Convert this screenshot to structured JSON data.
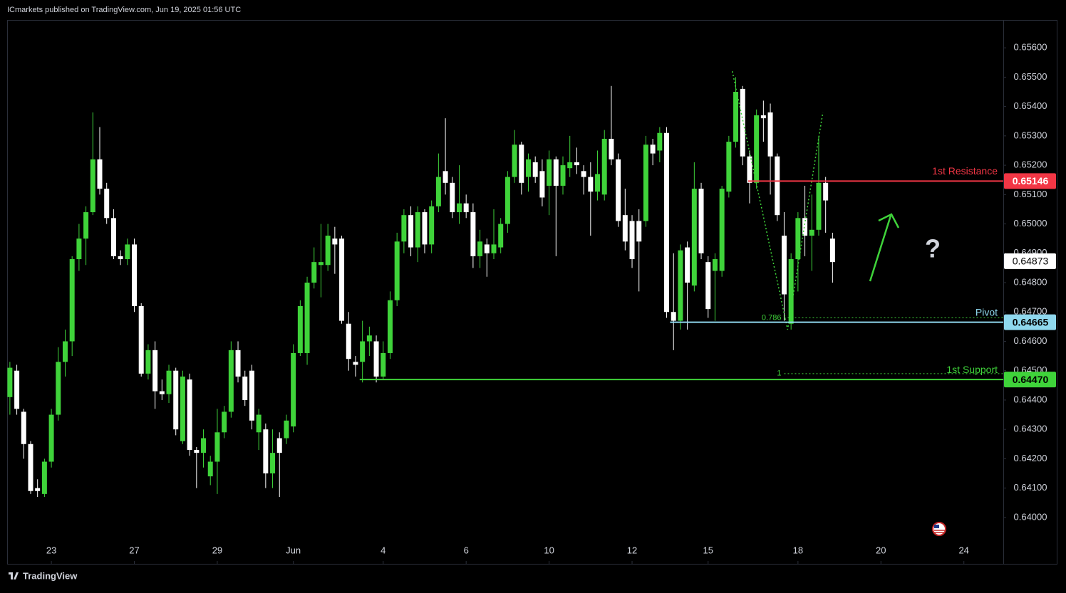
{
  "header": {
    "text": "ICmarkets published on TradingView.com, Jun 19, 2025 01:56 UTC"
  },
  "footer": {
    "brand": "TradingView"
  },
  "chart_data": {
    "type": "candlestick",
    "colors": {
      "up": "#3fd33a",
      "down": "#ffffff"
    },
    "xlim": [
      -0.4,
      143.7
    ],
    "xticks": [
      {
        "value": 6,
        "label": "23"
      },
      {
        "value": 18,
        "label": "27"
      },
      {
        "value": 30,
        "label": "29"
      },
      {
        "value": 41,
        "label": "Jun"
      },
      {
        "value": 54,
        "label": "4"
      },
      {
        "value": 66,
        "label": "6"
      },
      {
        "value": 78,
        "label": "10"
      },
      {
        "value": 90,
        "label": "12"
      },
      {
        "value": 101,
        "label": "15"
      },
      {
        "value": 114,
        "label": "18"
      },
      {
        "value": 126,
        "label": "20"
      },
      {
        "value": 138,
        "label": "24"
      }
    ],
    "ylim": [
      0.63842,
      0.65695
    ],
    "yticks": [
      {
        "value": 0.656,
        "label": "0.65600"
      },
      {
        "value": 0.655,
        "label": "0.65500"
      },
      {
        "value": 0.654,
        "label": "0.65400"
      },
      {
        "value": 0.653,
        "label": "0.65300"
      },
      {
        "value": 0.652,
        "label": "0.65200"
      },
      {
        "value": 0.651,
        "label": "0.65100"
      },
      {
        "value": 0.65,
        "label": "0.65000"
      },
      {
        "value": 0.649,
        "label": "0.64900"
      },
      {
        "value": 0.648,
        "label": "0.64800"
      },
      {
        "value": 0.647,
        "label": "0.64700"
      },
      {
        "value": 0.646,
        "label": "0.64600"
      },
      {
        "value": 0.645,
        "label": "0.64500"
      },
      {
        "value": 0.644,
        "label": "0.64400"
      },
      {
        "value": 0.643,
        "label": "0.64300"
      },
      {
        "value": 0.642,
        "label": "0.64200"
      },
      {
        "value": 0.641,
        "label": "0.64100"
      },
      {
        "value": 0.64,
        "label": "0.64000"
      }
    ],
    "candles": {
      "open": [
        0.6441,
        0.645,
        0.6436,
        0.6425,
        0.641,
        0.6408,
        0.6419,
        0.6435,
        0.6453,
        0.646,
        0.6488,
        0.6495,
        0.6504,
        0.6522,
        0.6512,
        0.6502,
        0.6489,
        0.6488,
        0.6493,
        0.6472,
        0.6449,
        0.6457,
        0.6443,
        0.6442,
        0.645,
        0.6426,
        0.6447,
        0.6423,
        0.6422,
        0.6414,
        0.6419,
        0.6429,
        0.6436,
        0.6457,
        0.6448,
        0.645,
        0.6429,
        0.643,
        0.6415,
        0.6427,
        0.6427,
        0.6431,
        0.6456,
        0.6456,
        0.648,
        0.6486,
        0.6486,
        0.6495,
        0.6495,
        0.6466,
        0.6453,
        0.6453,
        0.646,
        0.646,
        0.6448,
        0.6456,
        0.6474,
        0.6494,
        0.6503,
        0.6492,
        0.6504,
        0.6493,
        0.6506,
        0.6518,
        0.6514,
        0.6504,
        0.6507,
        0.6504,
        0.6489,
        0.6493,
        0.649,
        0.6492,
        0.65,
        0.6516,
        0.6527,
        0.6516,
        0.6521,
        0.6518,
        0.6513,
        0.6522,
        0.6513,
        0.6519,
        0.6521,
        0.6518,
        0.6516,
        0.6511,
        0.651,
        0.6529,
        0.6522,
        0.6503,
        0.6501,
        0.6501,
        0.6501,
        0.6527,
        0.6525,
        0.6531,
        0.647,
        0.6467,
        0.6492,
        0.6479,
        0.6512,
        0.6487,
        0.6484,
        0.6484,
        0.6511,
        0.6528,
        0.6546,
        0.6523,
        0.6514,
        0.6537,
        0.6538,
        0.6523,
        0.6496,
        0.6466,
        0.6488,
        0.6502,
        0.6496,
        0.6498,
        0.6514,
        0.6495
      ],
      "high": [
        0.6453,
        0.6452,
        0.6437,
        0.6426,
        0.6413,
        0.642,
        0.6437,
        0.6458,
        0.6464,
        0.6489,
        0.65,
        0.6506,
        0.6538,
        0.6533,
        0.6514,
        0.6505,
        0.6491,
        0.6495,
        0.6495,
        0.6473,
        0.6459,
        0.646,
        0.6447,
        0.6452,
        0.6451,
        0.645,
        0.6449,
        0.6424,
        0.643,
        0.6421,
        0.6437,
        0.6438,
        0.646,
        0.646,
        0.645,
        0.6452,
        0.6437,
        0.6432,
        0.643,
        0.6429,
        0.6435,
        0.6459,
        0.6474,
        0.6482,
        0.6492,
        0.65,
        0.65,
        0.6499,
        0.6496,
        0.647,
        0.6455,
        0.6467,
        0.6465,
        0.6462,
        0.646,
        0.6477,
        0.6497,
        0.6505,
        0.6506,
        0.6506,
        0.6505,
        0.6508,
        0.6524,
        0.6536,
        0.6516,
        0.652,
        0.651,
        0.6507,
        0.6498,
        0.6495,
        0.6505,
        0.6502,
        0.6518,
        0.6532,
        0.6528,
        0.6524,
        0.6523,
        0.6522,
        0.6525,
        0.6523,
        0.6523,
        0.653,
        0.6526,
        0.652,
        0.6521,
        0.6525,
        0.6532,
        0.6547,
        0.6524,
        0.6512,
        0.6503,
        0.6505,
        0.653,
        0.6529,
        0.6533,
        0.6533,
        0.649,
        0.6493,
        0.6494,
        0.6521,
        0.6514,
        0.6489,
        0.649,
        0.6513,
        0.653,
        0.655,
        0.6547,
        0.6525,
        0.6539,
        0.6542,
        0.6541,
        0.6524,
        0.6504,
        0.649,
        0.6504,
        0.6513,
        0.651,
        0.653,
        0.6516,
        0.6497
      ],
      "low": [
        0.6435,
        0.6435,
        0.642,
        0.6408,
        0.6407,
        0.6407,
        0.6417,
        0.6433,
        0.6448,
        0.6455,
        0.6484,
        0.6486,
        0.6503,
        0.651,
        0.65,
        0.6488,
        0.6486,
        0.6486,
        0.647,
        0.6448,
        0.6447,
        0.6437,
        0.644,
        0.6439,
        0.6428,
        0.6425,
        0.6421,
        0.641,
        0.6417,
        0.6411,
        0.6408,
        0.6427,
        0.6434,
        0.6446,
        0.6438,
        0.643,
        0.6423,
        0.641,
        0.641,
        0.6407,
        0.6425,
        0.6429,
        0.6455,
        0.6452,
        0.6478,
        0.6475,
        0.6484,
        0.6483,
        0.6466,
        0.645,
        0.6448,
        0.6446,
        0.6455,
        0.6446,
        0.6447,
        0.6454,
        0.6472,
        0.649,
        0.6489,
        0.6487,
        0.649,
        0.649,
        0.6504,
        0.651,
        0.6502,
        0.65,
        0.6502,
        0.6485,
        0.6485,
        0.6482,
        0.6488,
        0.649,
        0.6497,
        0.6514,
        0.651,
        0.6511,
        0.6514,
        0.6506,
        0.6503,
        0.6489,
        0.651,
        0.6516,
        0.6517,
        0.651,
        0.6496,
        0.6508,
        0.6508,
        0.652,
        0.6499,
        0.6491,
        0.6485,
        0.6477,
        0.6499,
        0.652,
        0.6521,
        0.6468,
        0.6457,
        0.6464,
        0.6464,
        0.6477,
        0.6488,
        0.6468,
        0.6467,
        0.6482,
        0.6509,
        0.6526,
        0.652,
        0.6507,
        0.6512,
        0.6528,
        0.651,
        0.6501,
        0.6467,
        0.6464,
        0.6477,
        0.6489,
        0.6484,
        0.6496,
        0.6497,
        0.648
      ],
      "close": [
        0.6451,
        0.6437,
        0.6425,
        0.6409,
        0.6409,
        0.6419,
        0.6435,
        0.6453,
        0.646,
        0.6488,
        0.6495,
        0.6504,
        0.6522,
        0.6512,
        0.6502,
        0.6489,
        0.6488,
        0.6493,
        0.6472,
        0.6449,
        0.6457,
        0.6443,
        0.6442,
        0.645,
        0.643,
        0.6448,
        0.6423,
        0.6422,
        0.6427,
        0.6419,
        0.6429,
        0.6436,
        0.6457,
        0.6448,
        0.644,
        0.6433,
        0.6435,
        0.6415,
        0.6422,
        0.6422,
        0.6433,
        0.6456,
        0.6472,
        0.648,
        0.6487,
        0.6487,
        0.6496,
        0.6493,
        0.6467,
        0.6454,
        0.6452,
        0.646,
        0.6462,
        0.6448,
        0.6456,
        0.6474,
        0.6494,
        0.6503,
        0.6492,
        0.6504,
        0.6493,
        0.6506,
        0.6516,
        0.6514,
        0.6504,
        0.6507,
        0.6504,
        0.6489,
        0.6494,
        0.649,
        0.6493,
        0.65,
        0.6516,
        0.6527,
        0.6514,
        0.6522,
        0.6516,
        0.6509,
        0.6522,
        0.6513,
        0.652,
        0.6521,
        0.652,
        0.6516,
        0.6511,
        0.6517,
        0.6529,
        0.6522,
        0.6501,
        0.6494,
        0.6488,
        0.6494,
        0.6527,
        0.6524,
        0.6531,
        0.647,
        0.6467,
        0.6491,
        0.648,
        0.6512,
        0.649,
        0.6471,
        0.6488,
        0.6512,
        0.6528,
        0.6545,
        0.6523,
        0.6514,
        0.6537,
        0.6536,
        0.6523,
        0.6503,
        0.6476,
        0.6488,
        0.6502,
        0.6496,
        0.6498,
        0.6514,
        0.6508,
        0.6487
      ]
    },
    "levels": [
      {
        "name": "1st Resistance",
        "value": 0.65146,
        "value_label": "0.65146",
        "start": 106.8,
        "color": "#f23645",
        "text_color": "#ffffff"
      },
      {
        "name": "Pivot",
        "value": 0.64665,
        "value_label": "0.64665",
        "start": 95.5,
        "color": "#8fd8ee",
        "text_color": "#000000"
      },
      {
        "name": "1st Support",
        "value": 0.6447,
        "value_label": "0.64470",
        "start": 50.6,
        "color": "#3fd33a",
        "text_color": "#000000"
      }
    ],
    "fib": [
      {
        "ratio": 0.786,
        "price": 0.6468,
        "start": 112
      },
      {
        "ratio": 1,
        "price": 0.6449,
        "start": 112
      }
    ],
    "fib_color": "#3fd33a",
    "pattern": {
      "x": [
        104.5,
        112.5,
        117.6
      ],
      "y": [
        0.6552,
        0.6464,
        0.6538
      ],
      "color": "#3fd33a"
    },
    "last_price": {
      "value": 0.64873,
      "label": "0.64873"
    }
  }
}
